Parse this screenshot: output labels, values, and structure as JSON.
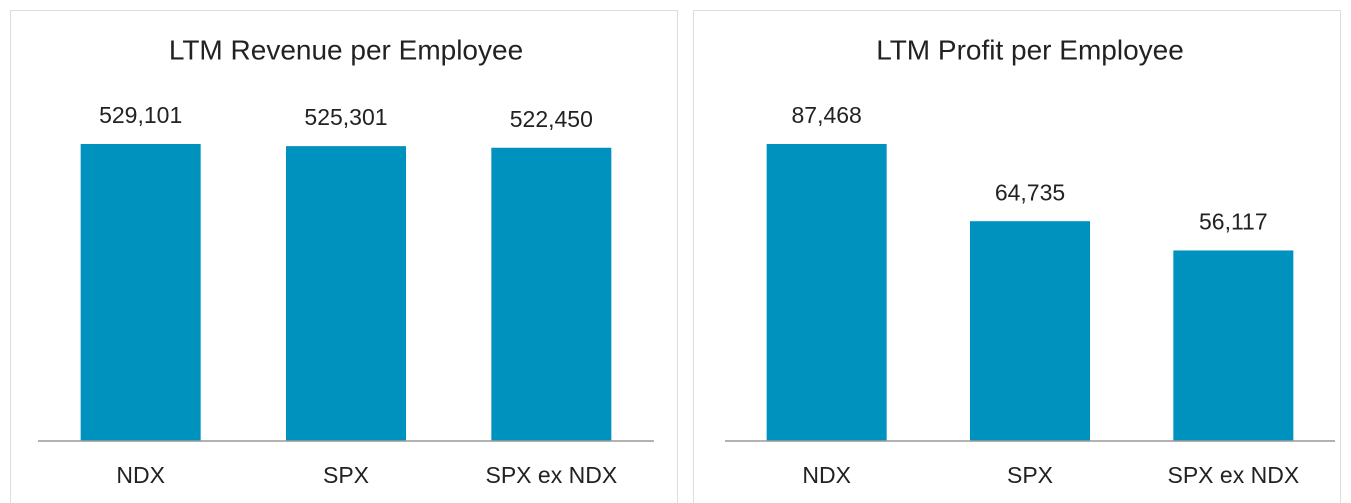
{
  "chart_data": [
    {
      "type": "bar",
      "title": "LTM Revenue per Employee",
      "categories": [
        "NDX",
        "SPX",
        "SPX ex NDX"
      ],
      "values": [
        529101,
        525301,
        522450
      ],
      "value_labels": [
        "529,101",
        "525,301",
        "522,450"
      ],
      "color": "#0092bf"
    },
    {
      "type": "bar",
      "title": "LTM Profit per Employee",
      "categories": [
        "NDX",
        "SPX",
        "SPX ex NDX"
      ],
      "values": [
        87468,
        64735,
        56117
      ],
      "value_labels": [
        "87,468",
        "64,735",
        "56,117"
      ],
      "color": "#0092bf"
    }
  ]
}
